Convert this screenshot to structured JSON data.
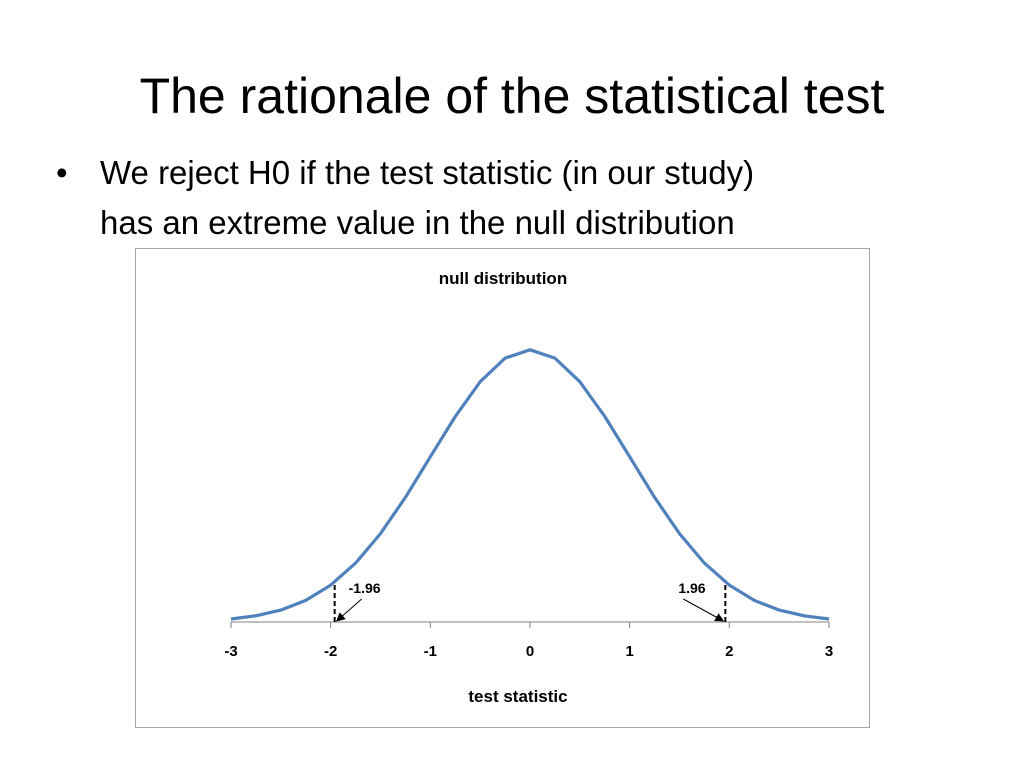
{
  "slide": {
    "title": "The rationale of the statistical test",
    "bullet_marker": "•",
    "bullet_lines": [
      "We reject H0 if the test statistic  (in our study)",
      "has an extreme value in the null distribution"
    ]
  },
  "chart_data": {
    "type": "line",
    "title": "null distribution",
    "xlabel": "test statistic",
    "ylabel": "",
    "xlim": [
      -3,
      3
    ],
    "ylim": [
      0,
      0.4
    ],
    "x_ticks": [
      "-3",
      "-2",
      "-1",
      "0",
      "1",
      "2",
      "3"
    ],
    "grid": false,
    "legend": "none",
    "series": [
      {
        "color": "#4f81bd",
        "x": [
          -3,
          -2.75,
          -2.5,
          -2.25,
          -2,
          -1.75,
          -1.5,
          -1.25,
          -1,
          -0.75,
          -0.5,
          -0.25,
          0,
          0.25,
          0.5,
          0.75,
          1,
          1.25,
          1.5,
          1.75,
          2,
          2.25,
          2.5,
          2.75,
          3
        ],
        "y": [
          0.0044,
          0.0091,
          0.0175,
          0.0317,
          0.054,
          0.0863,
          0.1295,
          0.1826,
          0.242,
          0.3011,
          0.3521,
          0.3867,
          0.3989,
          0.3867,
          0.3521,
          0.3011,
          0.242,
          0.1826,
          0.1295,
          0.0863,
          0.054,
          0.0317,
          0.0175,
          0.0091,
          0.0044
        ]
      }
    ],
    "annotations": [
      {
        "label": "-1.96",
        "x": -1.96,
        "y": 0.058
      },
      {
        "label": "1.96",
        "x": 1.96,
        "y": 0.058
      }
    ]
  }
}
